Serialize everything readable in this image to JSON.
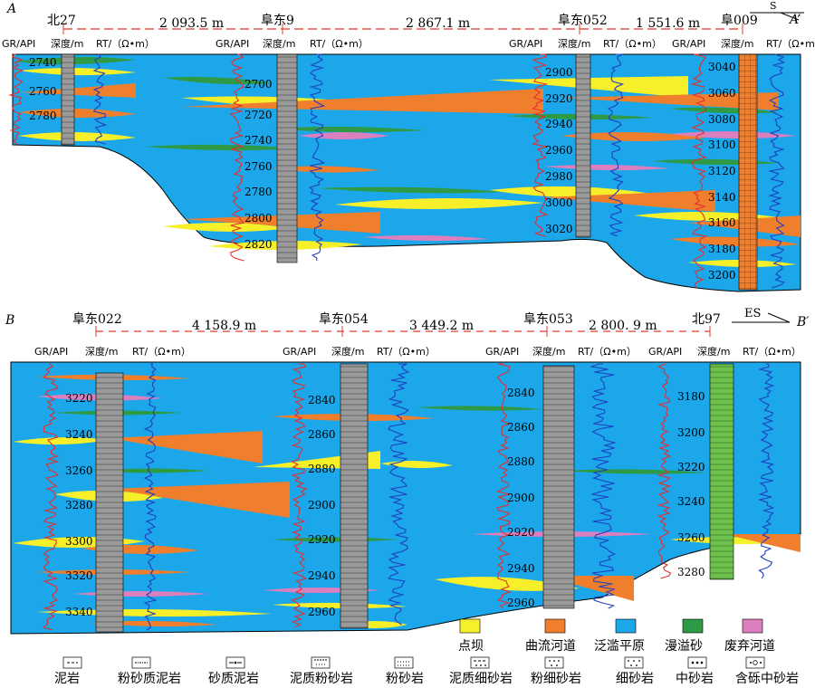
{
  "sectionA": {
    "label": "A",
    "end_label": "A’",
    "direction": "S",
    "wells": [
      {
        "name": "北27",
        "depths": [
          "2740",
          "2760",
          "2780"
        ]
      },
      {
        "name": "阜东9",
        "depths": [
          "2700",
          "2720",
          "2740",
          "2760",
          "2780",
          "2800",
          "2820"
        ]
      },
      {
        "name": "阜东052",
        "depths": [
          "2900",
          "2920",
          "2940",
          "2960",
          "2980",
          "3000",
          "3020"
        ]
      },
      {
        "name": "阜009",
        "depths": [
          "3040",
          "3060",
          "3080",
          "3100",
          "3120",
          "3140",
          "3160",
          "3180",
          "3200"
        ]
      }
    ],
    "distances": [
      "2 093.5 m",
      "2 867.1 m",
      "1 551.6 m"
    ]
  },
  "sectionB": {
    "label": "B",
    "end_label": "B′",
    "direction": "ES",
    "wells": [
      {
        "name": "阜东022",
        "depths": [
          "3220",
          "3240",
          "3260",
          "3280",
          "3300",
          "3320",
          "3340"
        ]
      },
      {
        "name": "阜东054",
        "depths": [
          "2840",
          "2860",
          "2880",
          "2900",
          "2920",
          "2940",
          "2960"
        ]
      },
      {
        "name": "阜东053",
        "depths": [
          "2840",
          "2860",
          "2880",
          "2900",
          "2920",
          "2940",
          "2960"
        ]
      },
      {
        "name": "北97",
        "depths": [
          "3180",
          "3200",
          "3220",
          "3240",
          "3260",
          "3280"
        ]
      }
    ],
    "distances": [
      "4 158.9 m",
      "3 449.2 m",
      "2 800. 9 m"
    ]
  },
  "track_headers": {
    "gr": "GR/API",
    "depth": "深度/m",
    "rt": "RT/（Ω•m）"
  },
  "legend_facies": [
    {
      "label": "点坝",
      "color": "#f7ef2a"
    },
    {
      "label": "曲流河道",
      "color": "#ef7f2d"
    },
    {
      "label": "泛滥平原",
      "color": "#1ba7ea"
    },
    {
      "label": "漫溢砂",
      "color": "#2f9a45"
    },
    {
      "label": "废弃河道",
      "color": "#dc7fbe"
    }
  ],
  "legend_lithology": [
    "泥岩",
    "粉砂质泥岩",
    "砂质泥岩",
    "泥质粉砂岩",
    "粉砂岩",
    "泥质细砂岩",
    "粉细砂岩",
    "细砂岩",
    "中砂岩",
    "含砾中砂岩"
  ]
}
